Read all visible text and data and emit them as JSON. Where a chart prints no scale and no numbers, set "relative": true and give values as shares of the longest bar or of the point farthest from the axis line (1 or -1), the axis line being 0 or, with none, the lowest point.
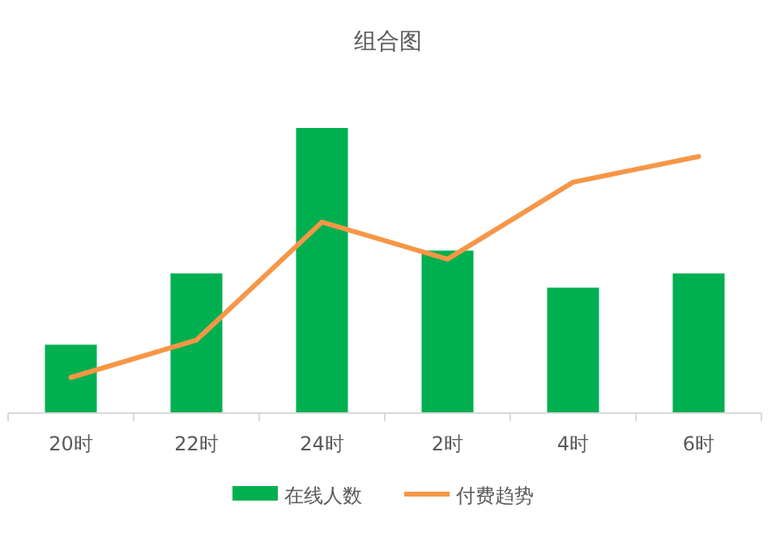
{
  "chart_data": {
    "type": "bar",
    "title": "组合图",
    "relative": true,
    "legend": "bottom",
    "categories": [
      "20时",
      "22时",
      "24时",
      "2时",
      "4时",
      "6时"
    ],
    "series": [
      {
        "name": "在线人数",
        "color": "#00b050",
        "values": [
          0.24,
          0.49,
          1,
          0.57,
          0.44,
          0.49
        ]
      },
      {
        "name": "付费趋势",
        "type": "line",
        "color": "#f79646",
        "values": [
          0.125,
          0.256,
          0.67,
          0.54,
          0.81,
          0.9
        ]
      }
    ]
  }
}
